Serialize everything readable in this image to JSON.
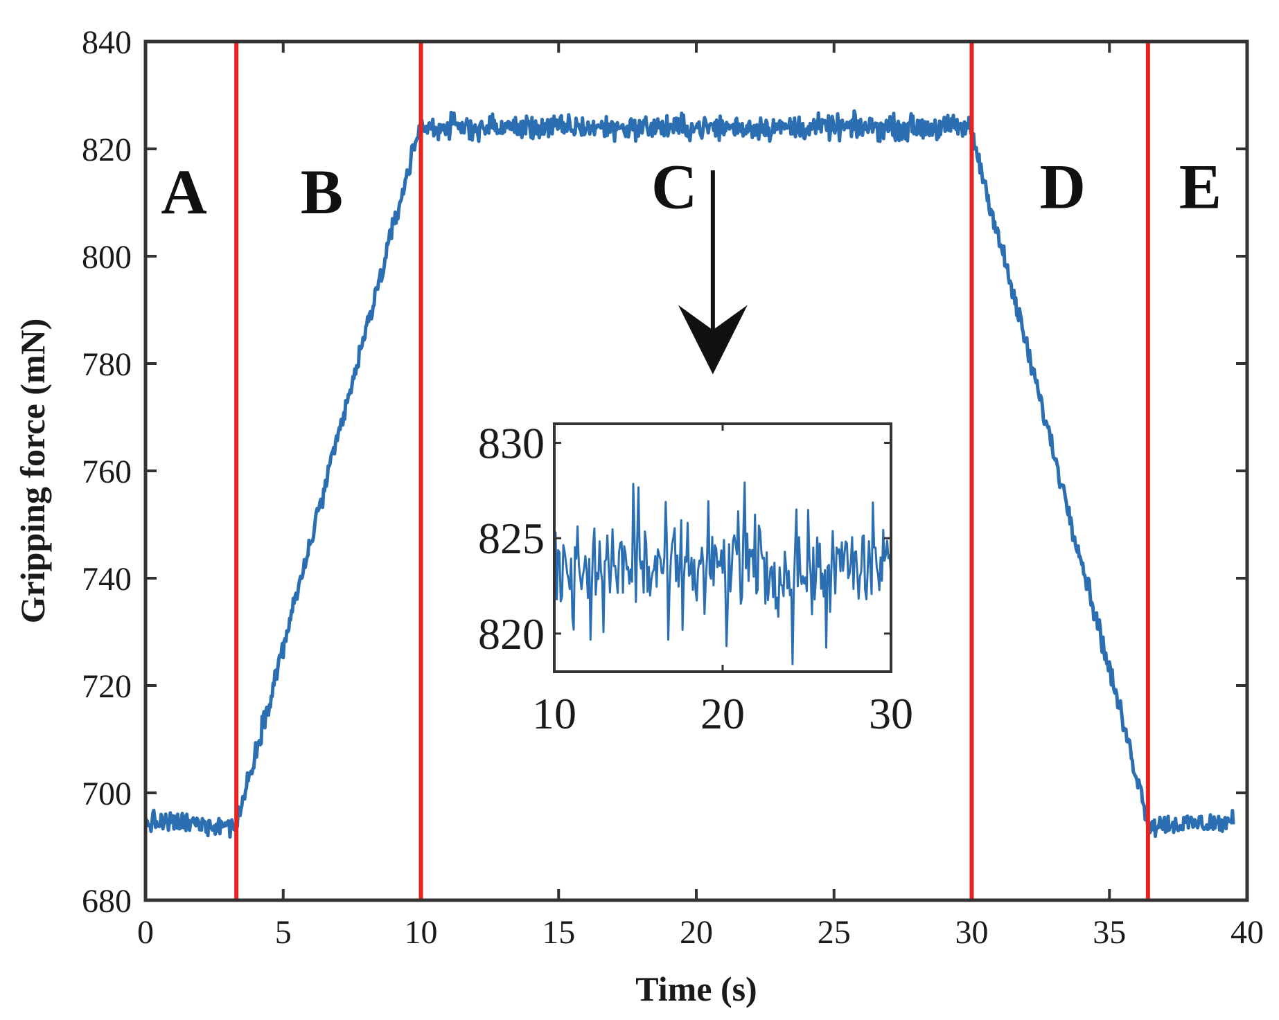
{
  "colors": {
    "series": "#2b6fb2",
    "marker_line": "#e8231f",
    "axis": "#333333",
    "arrow": "#111111"
  },
  "chart_data": [
    {
      "id": "main",
      "type": "line",
      "title": "",
      "xlabel": "Time (s)",
      "ylabel": "Gripping force (mN)",
      "xlim": [
        0,
        40
      ],
      "ylim": [
        680,
        840
      ],
      "xticks": [
        0,
        5,
        10,
        15,
        20,
        25,
        30,
        35,
        40
      ],
      "yticks": [
        680,
        700,
        720,
        740,
        760,
        780,
        800,
        820,
        840
      ],
      "grid": false,
      "vertical_lines": [
        3.3,
        10.0,
        30.0,
        36.4
      ],
      "region_labels": [
        {
          "text": "A",
          "x": 1.4,
          "y": 808
        },
        {
          "text": "B",
          "x": 6.4,
          "y": 808
        },
        {
          "text": "C",
          "x": 19.2,
          "y": 809
        },
        {
          "text": "D",
          "x": 33.3,
          "y": 809
        },
        {
          "text": "E",
          "x": 38.3,
          "y": 809
        }
      ],
      "annotation_arrow": {
        "from": [
          20.6,
          816
        ],
        "to": [
          20.6,
          778
        ]
      },
      "series": [
        {
          "name": "Gripping force",
          "segments": [
            {
              "x0": 0.0,
              "x1": 3.3,
              "y0": 694.5,
              "y1": 694.0,
              "noise": 2.0
            },
            {
              "x0": 3.3,
              "x1": 10.0,
              "y0": 694.0,
              "y1": 825.0,
              "noise": 2.0
            },
            {
              "x0": 10.0,
              "x1": 30.0,
              "y0": 824.0,
              "y1": 824.0,
              "noise": 2.2
            },
            {
              "x0": 30.0,
              "x1": 36.4,
              "y0": 823.0,
              "y1": 695.0,
              "noise": 2.0
            },
            {
              "x0": 36.4,
              "x1": 39.5,
              "y0": 694.0,
              "y1": 694.5,
              "noise": 2.0
            }
          ]
        }
      ]
    },
    {
      "id": "inset",
      "type": "line",
      "title": "",
      "xlabel": "",
      "ylabel": "",
      "xlim": [
        10,
        30
      ],
      "ylim": [
        818,
        831
      ],
      "xticks": [
        10,
        20,
        30
      ],
      "yticks": [
        820,
        825,
        830
      ],
      "grid": false,
      "series": [
        {
          "name": "Gripping force (zoom)",
          "mean": 823.5,
          "noise": 2.4
        }
      ]
    }
  ]
}
